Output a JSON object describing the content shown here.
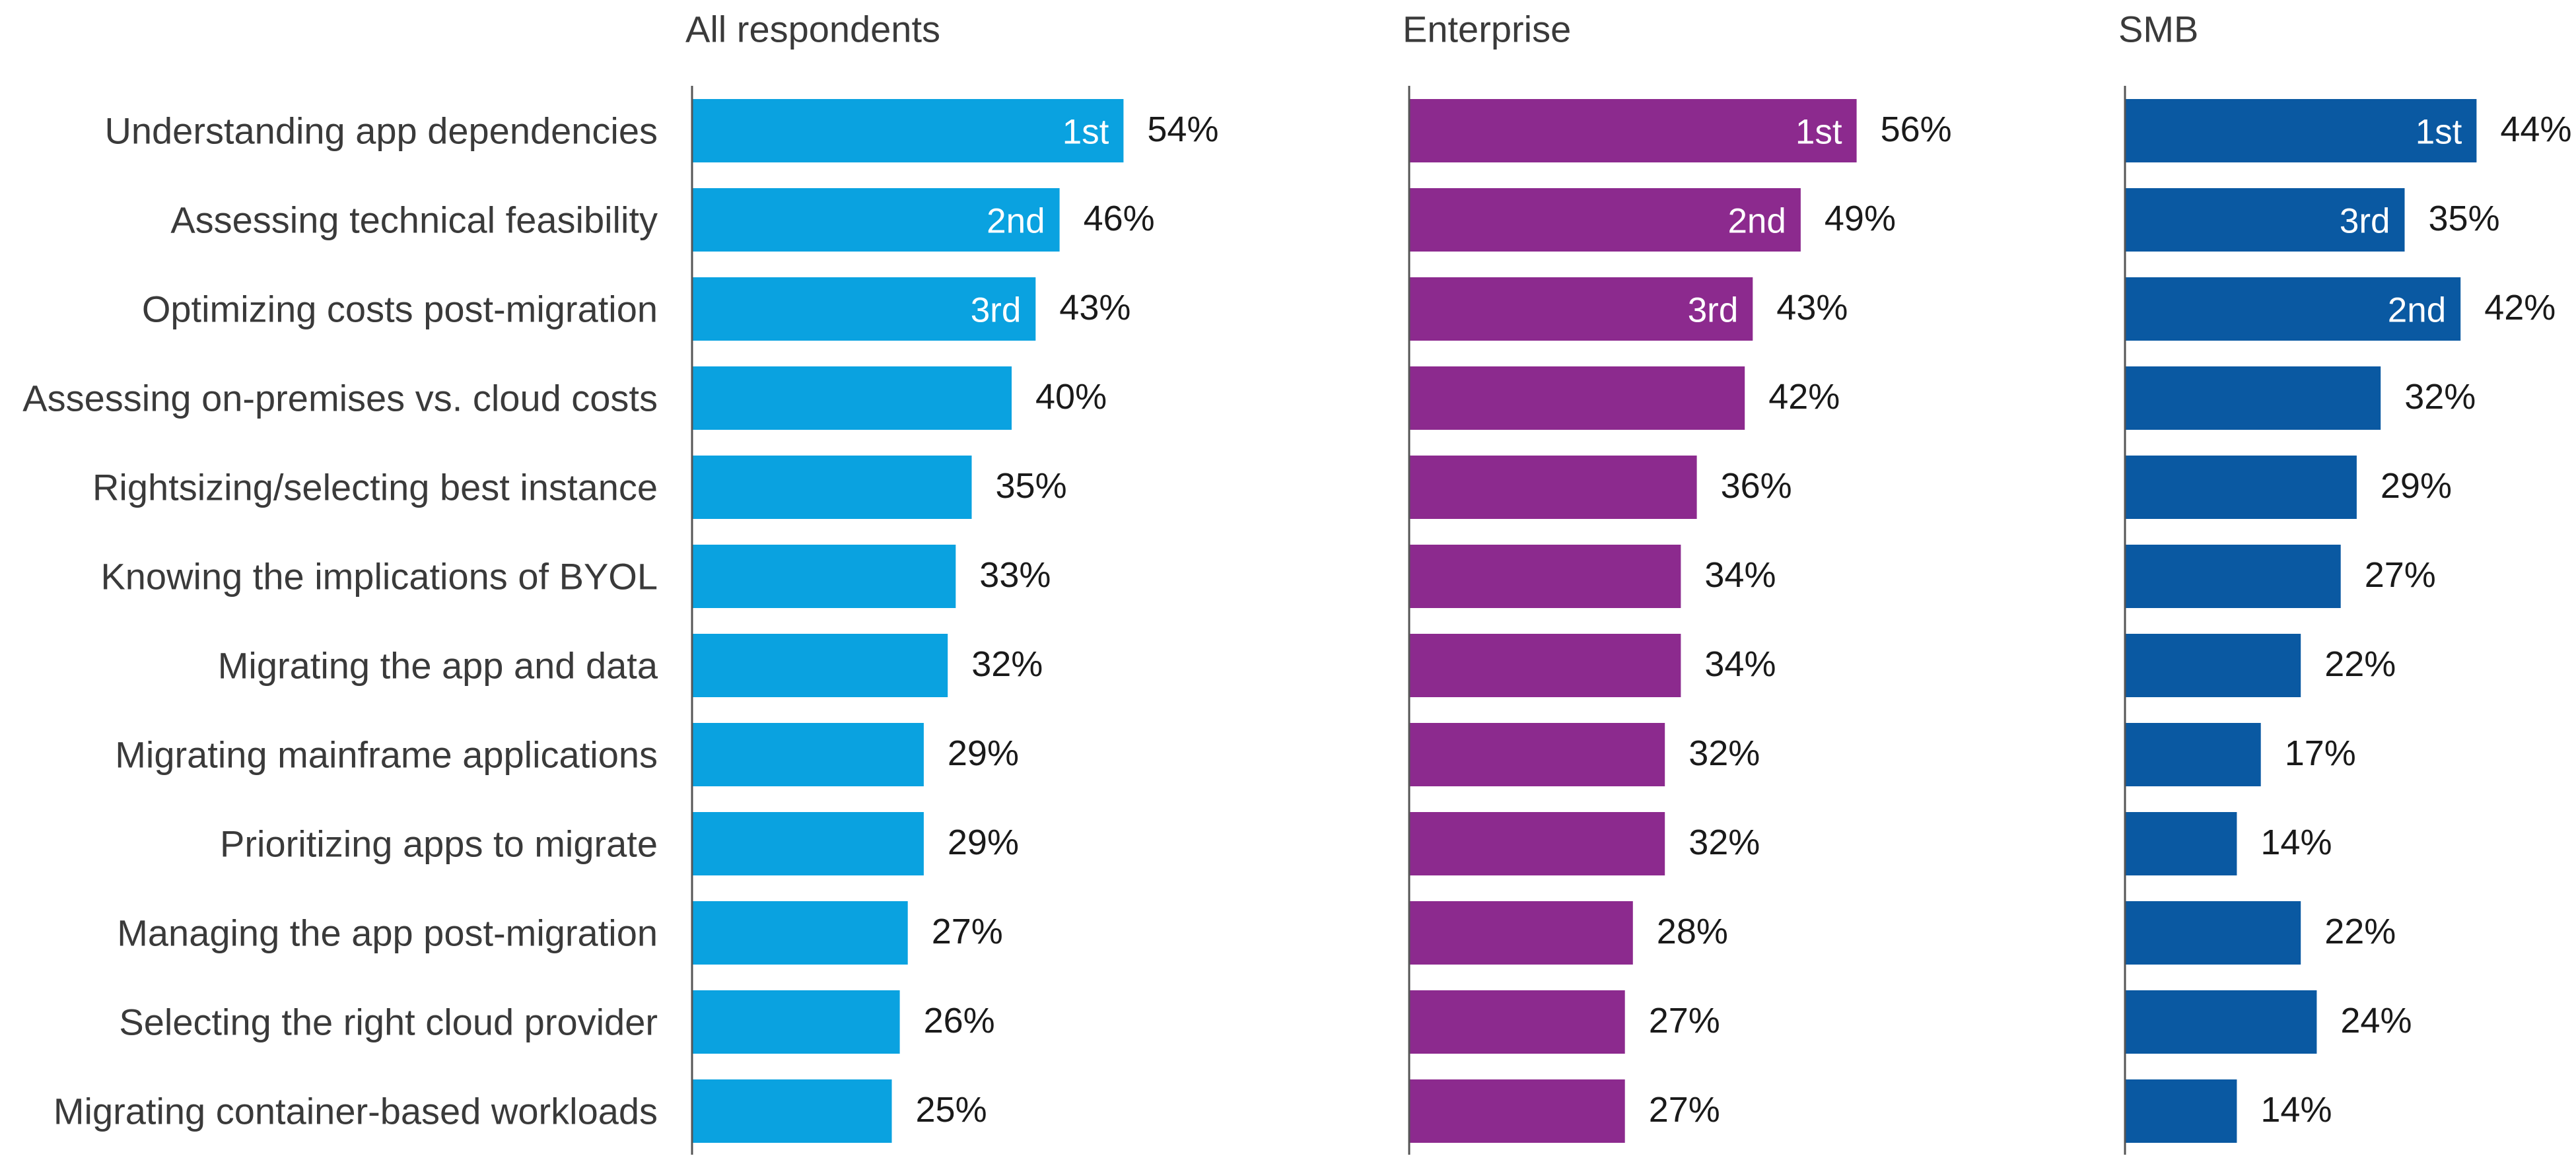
{
  "chart_data": {
    "type": "bar",
    "orientation": "horizontal",
    "categories": [
      "Understanding app dependencies",
      "Assessing technical feasibility",
      "Optimizing costs post-migration",
      "Assessing on-premises vs. cloud costs",
      "Rightsizing/selecting best instance",
      "Knowing the implications of BYOL",
      "Migrating the app and data",
      "Migrating mainframe applications",
      "Prioritizing apps to migrate",
      "Managing the app post-migration",
      "Selecting the right cloud provider",
      "Migrating container-based workloads"
    ],
    "series": [
      {
        "name": "All respondents",
        "color": "#0aa2e0",
        "values": [
          54,
          46,
          43,
          40,
          35,
          33,
          32,
          29,
          29,
          27,
          26,
          25
        ],
        "value_labels": [
          "54%",
          "46%",
          "43%",
          "40%",
          "35%",
          "33%",
          "32%",
          "29%",
          "29%",
          "27%",
          "26%",
          "25%"
        ],
        "ranks": [
          "1st",
          "2nd",
          "3rd",
          "",
          "",
          "",
          "",
          "",
          "",
          "",
          "",
          ""
        ]
      },
      {
        "name": "Enterprise",
        "color": "#8c2a8e",
        "values": [
          56,
          49,
          43,
          42,
          36,
          34,
          34,
          32,
          32,
          28,
          27,
          27
        ],
        "value_labels": [
          "56%",
          "49%",
          "43%",
          "42%",
          "36%",
          "34%",
          "34%",
          "32%",
          "32%",
          "28%",
          "27%",
          "27%"
        ],
        "ranks": [
          "1st",
          "2nd",
          "3rd",
          "",
          "",
          "",
          "",
          "",
          "",
          "",
          "",
          ""
        ]
      },
      {
        "name": "SMB",
        "color": "#0a59a2",
        "values": [
          44,
          35,
          42,
          32,
          29,
          27,
          22,
          17,
          14,
          22,
          24,
          14
        ],
        "value_labels": [
          "44%",
          "35%",
          "42%",
          "32%",
          "29%",
          "27%",
          "22%",
          "17%",
          "14%",
          "22%",
          "24%",
          "14%"
        ],
        "ranks": [
          "1st",
          "3rd",
          "2nd",
          "",
          "",
          "",
          "",
          "",
          "",
          "",
          "",
          ""
        ]
      }
    ],
    "xlim": [
      0,
      100
    ],
    "grid": false,
    "legend": "none"
  }
}
